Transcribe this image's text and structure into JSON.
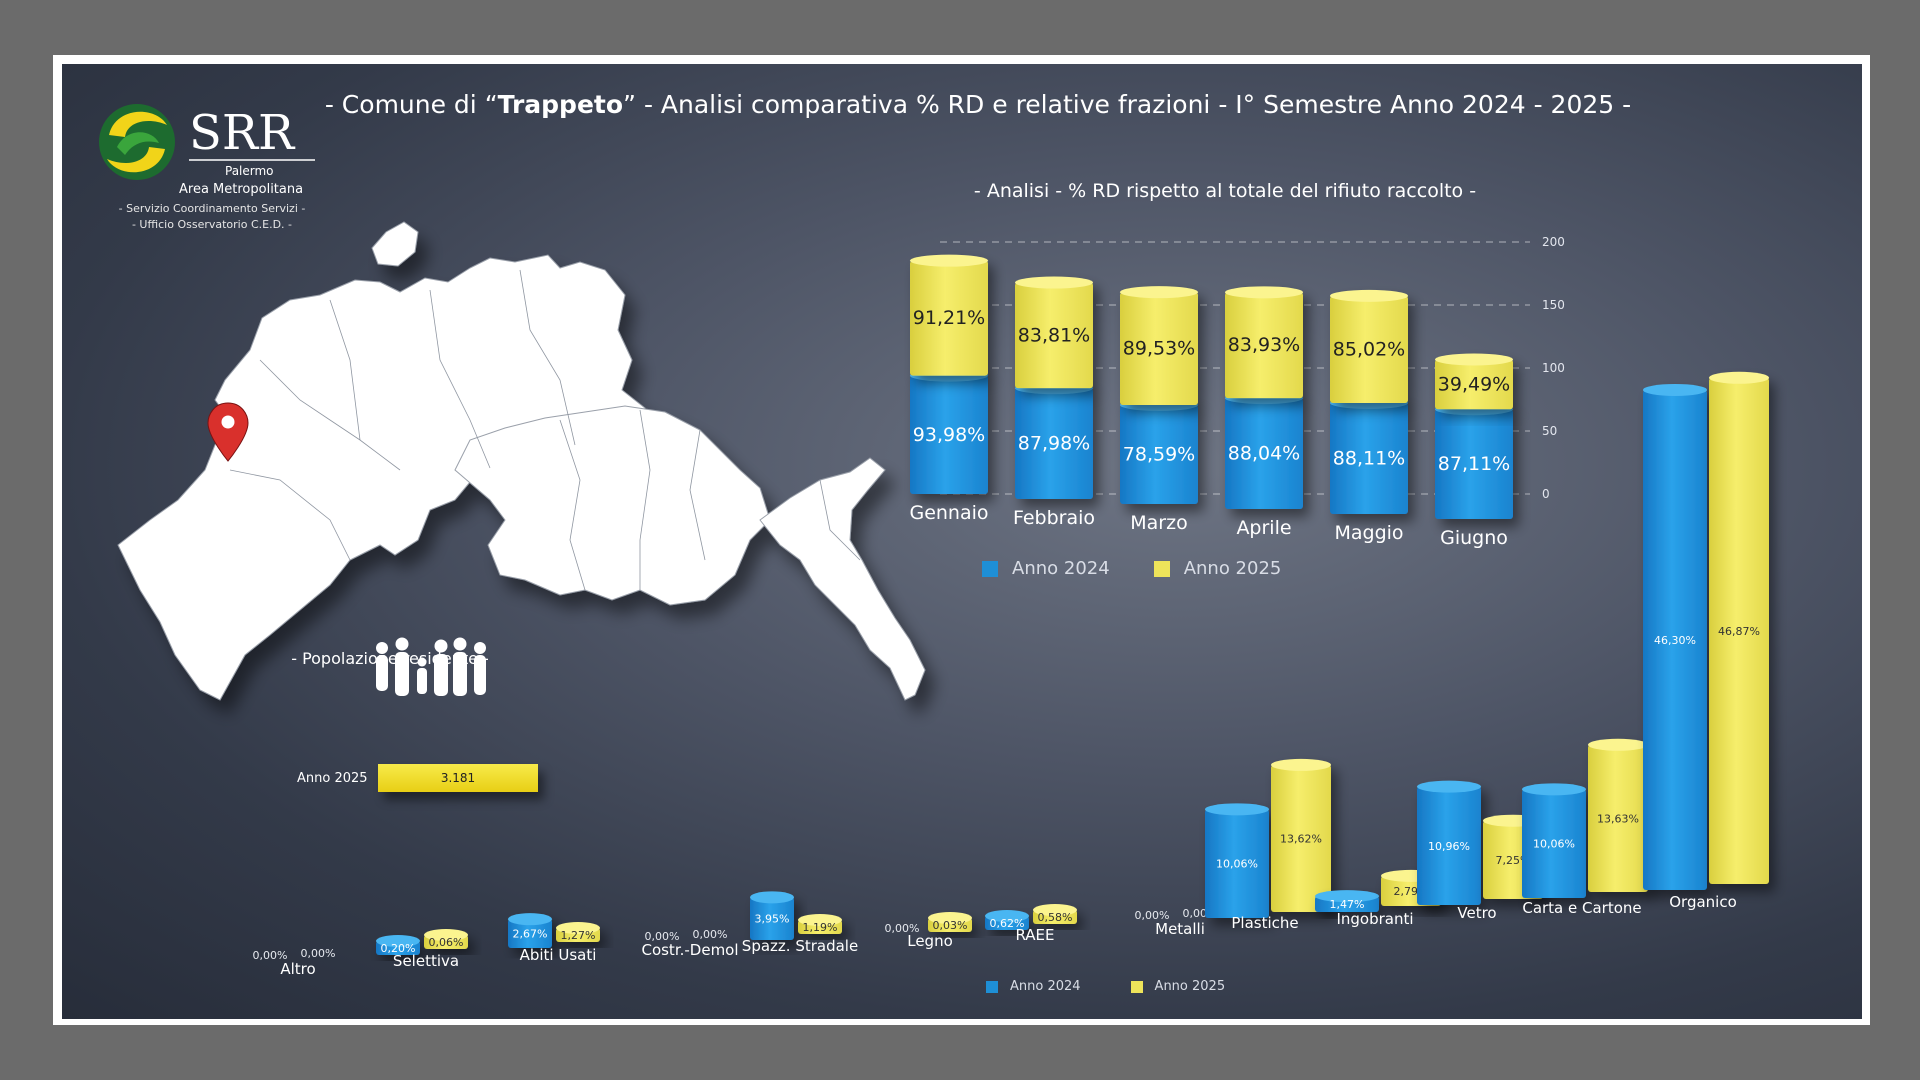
{
  "header": {
    "title_prefix": "- Comune di “",
    "title_town": "Trappeto",
    "title_suffix": "” - Analisi comparativa % RD e relative frazioni - I° Semestre Anno 2024 - 2025 -",
    "subtitle": "- Analisi - % RD rispetto al totale del rifiuto raccolto -"
  },
  "logo": {
    "name": "SRR",
    "line1": "Palermo",
    "line2": "Area Metropolitana",
    "sub1": "- Servizio Coordinamento Servizi -",
    "sub2": "- Ufficio Osservatorio C.E.D. -"
  },
  "population": {
    "label": "- Popolazione residente -",
    "year": "Anno 2025",
    "value": "3.181"
  },
  "colors": {
    "anno_2024": "#1e8fd6",
    "anno_2025": "#eee45a",
    "background": "#3c4353"
  },
  "icons": [
    "map-pin-icon",
    "family-icon",
    "srr-logo-icon"
  ],
  "chart_data": [
    {
      "type": "bar",
      "stacked": true,
      "categories": [
        "Gennaio",
        "Febbraio",
        "Marzo",
        "Aprile",
        "Maggio",
        "Giugno"
      ],
      "series": [
        {
          "name": "Anno 2024",
          "values": [
            93.98,
            87.98,
            78.59,
            88.04,
            88.11,
            87.11
          ],
          "labels": [
            "93,98%",
            "87,98%",
            "78,59%",
            "88,04%",
            "88,11%",
            "87,11%"
          ]
        },
        {
          "name": "Anno 2025",
          "values": [
            91.21,
            83.81,
            89.53,
            83.93,
            85.02,
            39.49
          ],
          "labels": [
            "91,21%",
            "83,81%",
            "89,53%",
            "83,93%",
            "85,02%",
            "39,49%"
          ]
        }
      ],
      "ylim": [
        0,
        200
      ],
      "yticks": [
        "0",
        "50",
        "100",
        "150",
        "200"
      ],
      "legend": "bottom"
    },
    {
      "type": "bar",
      "categories": [
        "Altro",
        "Selettiva",
        "Abiti Usati",
        "Costr.-Demol",
        "Spazz. Stradale",
        "Legno",
        "RAEE",
        "Metalli",
        "Plastiche",
        "Ingobranti",
        "Vetro",
        "Carta e Cartone",
        "Organico"
      ],
      "series": [
        {
          "name": "Anno 2024",
          "values": [
            0.0,
            0.2,
            2.67,
            0.0,
            3.95,
            0.0,
            0.62,
            0.0,
            10.06,
            1.47,
            10.96,
            10.06,
            46.3
          ],
          "labels": [
            "0,00%",
            "0,20%",
            "2,67%",
            "0,00%",
            "3,95%",
            "0,00%",
            "0,62%",
            "0,00%",
            "10,06%",
            "1,47%",
            "10,96%",
            "10,06%",
            "46,30%"
          ]
        },
        {
          "name": "Anno 2025",
          "values": [
            0.0,
            0.06,
            1.27,
            0.0,
            1.19,
            0.03,
            0.58,
            0.0,
            13.62,
            2.79,
            7.25,
            13.63,
            46.87
          ],
          "labels": [
            "0,00%",
            "0,06%",
            "1,27%",
            "0,00%",
            "1,19%",
            "0,03%",
            "0,58%",
            "0,00%",
            "13,62%",
            "2,79%",
            "7,25%",
            "13,63%",
            "46,87%"
          ]
        }
      ],
      "legend": "bottom"
    }
  ]
}
